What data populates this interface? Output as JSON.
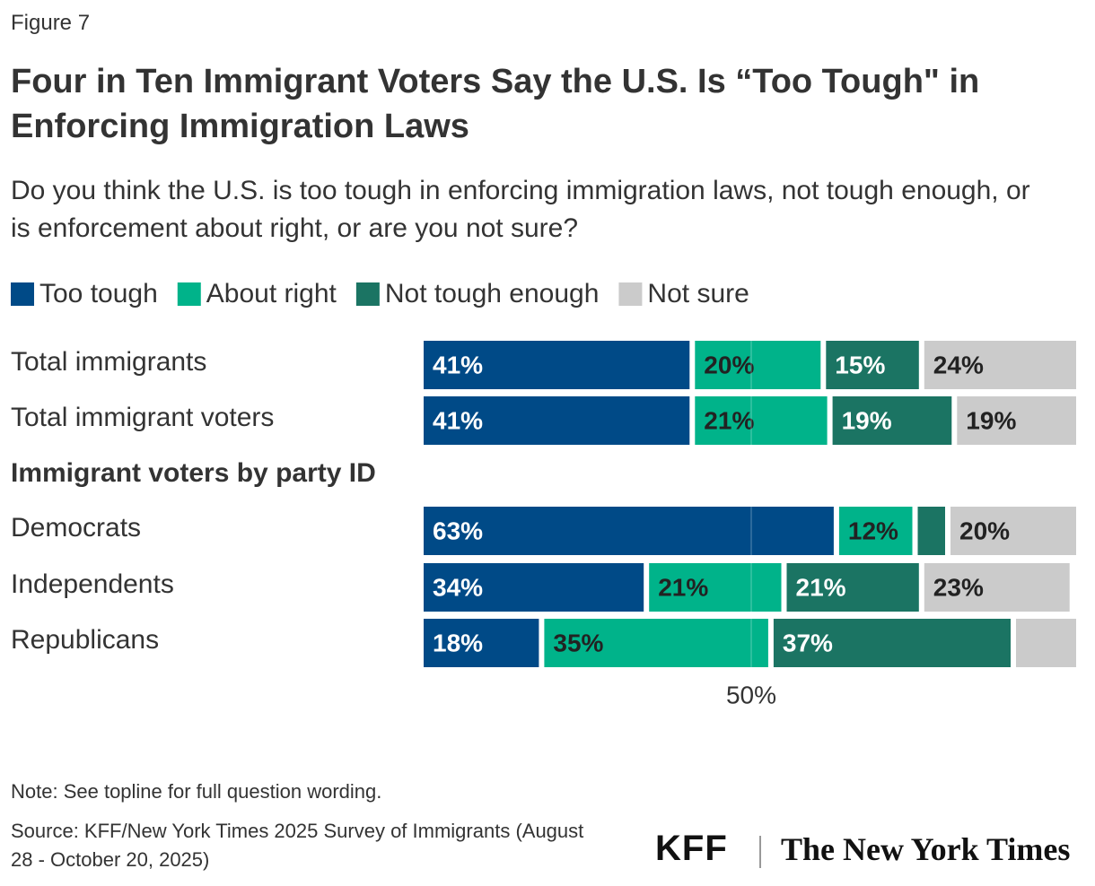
{
  "figure_label": "Figure 7",
  "chart_data": {
    "type": "stacked-bar",
    "orientation": "horizontal",
    "title": "Four in Ten Immigrant Voters Say the U.S. Is “Too Tough\" in Enforcing Immigration Laws",
    "subtitle": "Do you think the U.S. is too tough in enforcing immigration laws, not tough enough, or is enforcement about right, or are you not sure?",
    "categories": [
      "Total immigrants",
      "Total immigrant voters",
      "Immigrant voters by party ID",
      "Democrats",
      "Independents",
      "Republicans"
    ],
    "series": [
      {
        "name": "Too tough",
        "color": "#004a87",
        "values": [
          41,
          41,
          null,
          63,
          34,
          18
        ],
        "value_labels": [
          "41%",
          "41%",
          null,
          "63%",
          "34%",
          "18%"
        ]
      },
      {
        "name": "About right",
        "color": "#00b38a",
        "values": [
          20,
          21,
          null,
          12,
          21,
          35
        ],
        "value_labels": [
          "20%",
          "21%",
          null,
          "12%",
          "21%",
          "35%"
        ]
      },
      {
        "name": "Not tough enough",
        "color": "#1b7463",
        "values": [
          15,
          19,
          null,
          5,
          21,
          37
        ],
        "value_labels": [
          "15%",
          "19%",
          null,
          null,
          "21%",
          "37%"
        ]
      },
      {
        "name": "Not sure",
        "color": "#cbcbcb",
        "values": [
          24,
          19,
          null,
          20,
          23,
          10
        ],
        "value_labels": [
          "24%",
          "19%",
          null,
          "20%",
          "23%",
          null
        ]
      }
    ],
    "xlim": [
      0,
      100
    ],
    "xticks": [
      {
        "value": 50,
        "label": "50%"
      }
    ],
    "grid": true,
    "legend": "top-left"
  },
  "footer": {
    "note": "Note: See topline for full question wording.",
    "source": "Source: KFF/New York Times 2025 Survey of Immigrants (August 28 - October 20, 2025)",
    "logos": [
      "KFF",
      "The New York Times"
    ]
  }
}
